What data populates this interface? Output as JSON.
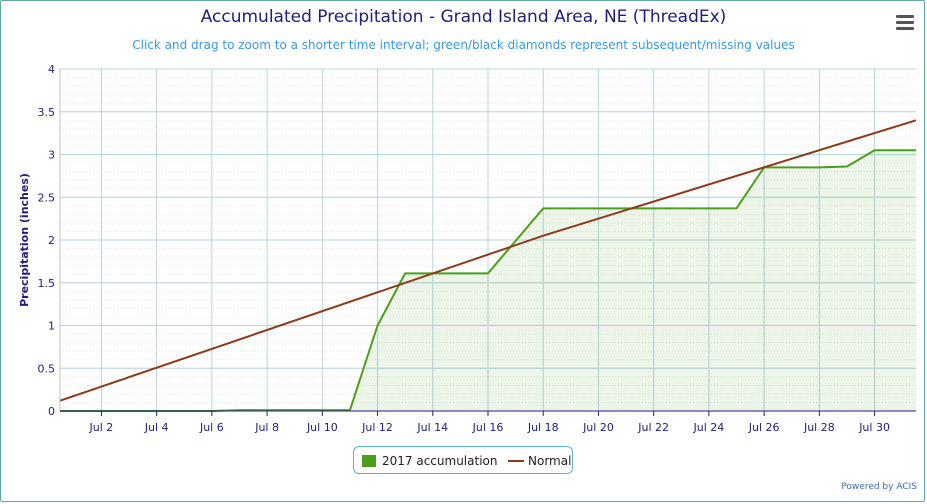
{
  "chart_data": {
    "type": "line",
    "title": "Accumulated Precipitation - Grand Island Area, NE (ThreadEx)",
    "subtitle": "Click and drag to zoom to a shorter time interval; green/black diamonds represent subsequent/missing values",
    "ylabel": "Precipitation (inches)",
    "xlabel": "",
    "xlim": [
      0.5,
      31.5
    ],
    "ylim": [
      0,
      4
    ],
    "yticks": [
      0,
      0.5,
      1,
      1.5,
      2,
      2.5,
      3,
      3.5,
      4
    ],
    "ytick_labels": [
      "0",
      "0.5",
      "1",
      "1.5",
      "2",
      "2.5",
      "3",
      "3.5",
      "4"
    ],
    "xticks": [
      2,
      4,
      6,
      8,
      10,
      12,
      14,
      16,
      18,
      20,
      22,
      24,
      26,
      28,
      30
    ],
    "xtick_labels": [
      "Jul 2",
      "Jul 4",
      "Jul 6",
      "Jul 8",
      "Jul 10",
      "Jul 12",
      "Jul 14",
      "Jul 16",
      "Jul 18",
      "Jul 20",
      "Jul 22",
      "Jul 24",
      "Jul 26",
      "Jul 28",
      "Jul 30"
    ],
    "grid": true,
    "legend_position": "bottom-center",
    "series": [
      {
        "name": "2017 accumulation",
        "color": "#4c9e1c",
        "fill": "area",
        "x": [
          0.5,
          1,
          2,
          3,
          4,
          5,
          6,
          7,
          8,
          9,
          10,
          11,
          12,
          13,
          14,
          15,
          16,
          17,
          18,
          19,
          20,
          21,
          22,
          23,
          24,
          25,
          26,
          27,
          28,
          29,
          30,
          31,
          31.5
        ],
        "y": [
          0,
          0,
          0,
          0,
          0,
          0,
          0,
          0.01,
          0.01,
          0.01,
          0.01,
          0.01,
          1.0,
          1.61,
          1.61,
          1.61,
          1.61,
          1.99,
          2.37,
          2.37,
          2.37,
          2.37,
          2.37,
          2.37,
          2.37,
          2.37,
          2.85,
          2.85,
          2.85,
          2.86,
          3.05,
          3.05,
          3.05
        ]
      },
      {
        "name": "Normal",
        "color": "#8b3a1a",
        "fill": "none",
        "x": [
          0.5,
          18,
          31.5
        ],
        "y": [
          0.12,
          2.05,
          3.4
        ]
      }
    ]
  },
  "legend": {
    "accum_label": "2017 accumulation",
    "normal_label": "Normal"
  },
  "credits": "Powered by ACIS",
  "colors": {
    "grid": "#b8d4e3",
    "minor_grid": "#dde8ee",
    "axis": "#1f1f7a",
    "accent": "#5fa8a8"
  }
}
